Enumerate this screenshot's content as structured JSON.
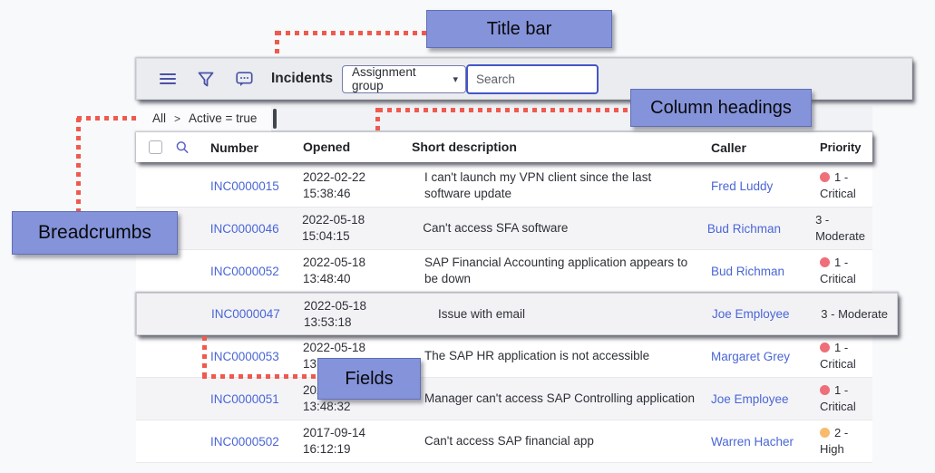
{
  "colors": {
    "page-bg": "#f8f9fb",
    "titlebar-bg": "#ebecf0",
    "icon-indigo": "#4a52a5",
    "link-blue": "#4a66d6",
    "alt-row": "#f4f4f7",
    "highlight-row": "#f2f2f5",
    "callout-bg": "#8593da",
    "dotted-red": "#ef5a4e",
    "critical-dot": "#ee6f79",
    "high-dot": "#f8bb6d",
    "search-border": "#4455c8"
  },
  "callouts": {
    "title_bar": "Title bar",
    "column_headings": "Column headings",
    "breadcrumbs": "Breadcrumbs",
    "fields": "Fields"
  },
  "title_bar": {
    "title": "Incidents",
    "dropdown_label": "Assignment group",
    "search_placeholder": "Search",
    "icons": [
      "menu-icon",
      "filter-icon",
      "chat-icon"
    ]
  },
  "breadcrumb": {
    "items": [
      "All",
      "Active = true"
    ],
    "separator": ">"
  },
  "table": {
    "columns": {
      "number": "Number",
      "opened": "Opened",
      "short_description": "Short description",
      "caller": "Caller",
      "priority": "Priority"
    },
    "rows": [
      {
        "number": "INC0000015",
        "date": "2022-02-22",
        "time": "15:38:46",
        "short_description": "I can't launch my VPN client since the last software update",
        "caller": "Fred Luddy",
        "priority": "1 - Critical",
        "priority_lines": [
          "1 -",
          "Critical"
        ],
        "dot": "critical",
        "highlight": false
      },
      {
        "number": "INC0000046",
        "date": "2022-05-18",
        "time": "15:04:15",
        "short_description": "Can't access SFA software",
        "caller": "Bud Richman",
        "priority": "3 - Moderate",
        "priority_lines": [
          "3 - Moderate"
        ],
        "dot": null,
        "highlight": false
      },
      {
        "number": "INC0000052",
        "date": "2022-05-18",
        "time": "13:48:40",
        "short_description": "SAP Financial Accounting application appears to be down",
        "caller": "Bud Richman",
        "priority": "1 - Critical",
        "priority_lines": [
          "1 -",
          "Critical"
        ],
        "dot": "critical",
        "highlight": false
      },
      {
        "number": "INC0000047",
        "date": "2022-05-18",
        "time": "13:53:18",
        "short_description": "Issue with email",
        "caller": "Joe Employee",
        "priority": "3 - Moderate",
        "priority_lines": [
          "3 - Moderate"
        ],
        "dot": null,
        "highlight": true
      },
      {
        "number": "INC0000053",
        "date": "2022-05-18",
        "time": "13:48:44",
        "short_description": "The SAP HR application is not accessible",
        "caller": "Margaret Grey",
        "priority": "1 - Critical",
        "priority_lines": [
          "1 -",
          "Critical"
        ],
        "dot": "critical",
        "highlight": false
      },
      {
        "number": "INC0000051",
        "date": "2022-05-18",
        "time": "13:48:32",
        "short_description": "Manager can't access SAP Controlling application",
        "caller": "Joe Employee",
        "priority": "1 - Critical",
        "priority_lines": [
          "1 -",
          "Critical"
        ],
        "dot": "critical",
        "highlight": false
      },
      {
        "number": "INC0000502",
        "date": "2017-09-14",
        "time": "16:12:19",
        "short_description": "Can't access SAP financial app",
        "caller": "Warren Hacher",
        "priority": "2 - High",
        "priority_lines": [
          "2 - High"
        ],
        "dot": "high",
        "highlight": false
      }
    ]
  }
}
